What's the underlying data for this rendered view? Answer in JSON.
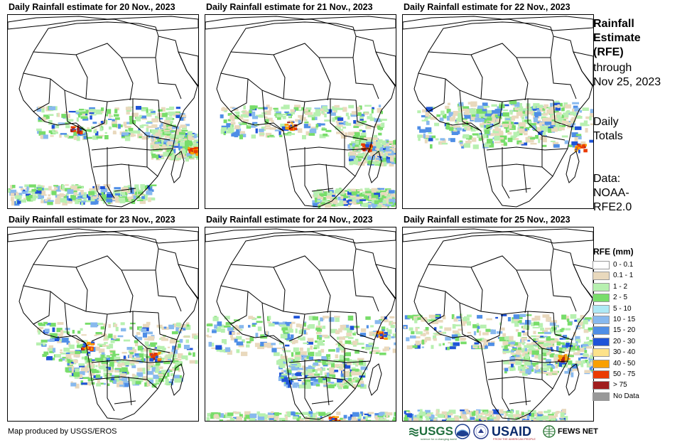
{
  "panels": [
    {
      "title": "Daily Rainfall estimate for 20 Nov., 2023"
    },
    {
      "title": "Daily Rainfall estimate for 21 Nov., 2023"
    },
    {
      "title": "Daily Rainfall estimate for 22 Nov., 2023"
    },
    {
      "title": "Daily Rainfall estimate for 23 Nov., 2023"
    },
    {
      "title": "Daily Rainfall estimate for 24 Nov., 2023"
    },
    {
      "title": "Daily Rainfall estimate for 25 Nov., 2023"
    }
  ],
  "sidebar": {
    "title_line1": "Rainfall",
    "title_line2": "Estimate",
    "title_line3": "(RFE)",
    "through_line1": "through",
    "through_line2": "Nov 25, 2023",
    "daily_line1": "Daily",
    "daily_line2": "Totals",
    "data_line1": "Data:",
    "data_line2": "NOAA-",
    "data_line3": "RFE2.0"
  },
  "legend": {
    "title": "RFE (mm)",
    "items": [
      {
        "label": "0 - 0.1",
        "color": "#ffffff"
      },
      {
        "label": "0.1 - 1",
        "color": "#e9d9bd"
      },
      {
        "label": "1 - 2",
        "color": "#b7f0b0"
      },
      {
        "label": "2 - 5",
        "color": "#78dd6a"
      },
      {
        "label": "5 - 10",
        "color": "#aee9f5"
      },
      {
        "label": "10 - 15",
        "color": "#88b9ee"
      },
      {
        "label": "15 - 20",
        "color": "#4f8ee6"
      },
      {
        "label": "20 - 30",
        "color": "#1f54d8"
      },
      {
        "label": "30 - 40",
        "color": "#fde28a"
      },
      {
        "label": "40 - 50",
        "color": "#f9a000"
      },
      {
        "label": "50 - 75",
        "color": "#ea3b00"
      },
      {
        "label": "> 75",
        "color": "#a01e1e"
      },
      {
        "label": "No Data",
        "color": "#999999"
      }
    ]
  },
  "footer": {
    "credit": "Map produced by USGS/EROS",
    "logos": {
      "usgs": "USGS",
      "usgs_tagline": "science for a changing world",
      "usaid": "USAID",
      "usaid_tagline": "FROM THE AMERICAN PEOPLE",
      "fewsnet": "FEWS NET"
    }
  }
}
